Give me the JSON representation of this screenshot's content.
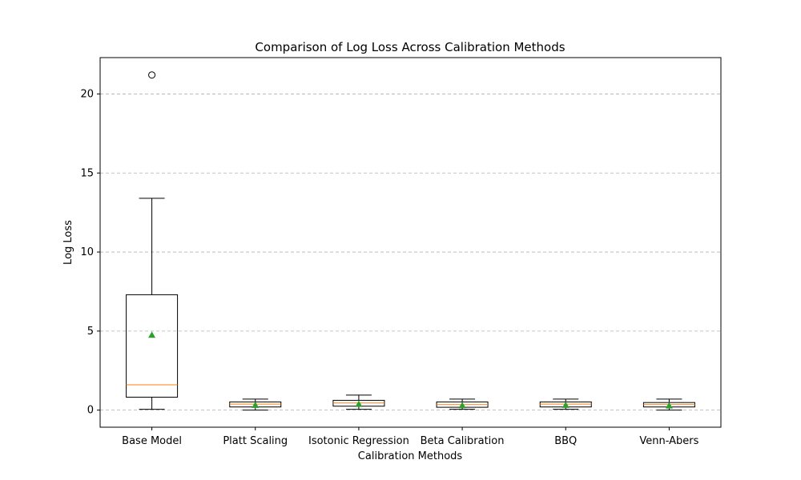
{
  "chart_data": {
    "type": "box",
    "title": "Comparison of Log Loss Across Calibration Methods",
    "xlabel": "Calibration Methods",
    "ylabel": "Log Loss",
    "ylim": [
      -1.08,
      22.3
    ],
    "yticks": [
      0,
      5,
      10,
      15,
      20
    ],
    "grid": "y-dashed",
    "categories": [
      "Base Model",
      "Platt Scaling",
      "Isotonic Regression",
      "Beta Calibration",
      "BBQ",
      "Venn-Abers"
    ],
    "boxes": [
      {
        "whisker_low": 0.05,
        "q1": 0.82,
        "median": 1.6,
        "q3": 7.3,
        "whisker_high": 13.4,
        "mean": 4.75,
        "outliers": [
          21.2
        ]
      },
      {
        "whisker_low": 0.0,
        "q1": 0.2,
        "median": 0.38,
        "q3": 0.52,
        "whisker_high": 0.7,
        "mean": 0.32,
        "outliers": []
      },
      {
        "whisker_low": 0.05,
        "q1": 0.25,
        "median": 0.45,
        "q3": 0.62,
        "whisker_high": 0.95,
        "mean": 0.38,
        "outliers": []
      },
      {
        "whisker_low": 0.05,
        "q1": 0.18,
        "median": 0.35,
        "q3": 0.52,
        "whisker_high": 0.7,
        "mean": 0.3,
        "outliers": []
      },
      {
        "whisker_low": 0.05,
        "q1": 0.2,
        "median": 0.38,
        "q3": 0.52,
        "whisker_high": 0.7,
        "mean": 0.32,
        "outliers": []
      },
      {
        "whisker_low": 0.0,
        "q1": 0.2,
        "median": 0.35,
        "q3": 0.48,
        "whisker_high": 0.7,
        "mean": 0.28,
        "outliers": []
      }
    ],
    "colors": {
      "median": "#ff7f0e",
      "mean": "#2ca02c",
      "box": "#000000",
      "grid": "#b0b0b0"
    }
  }
}
